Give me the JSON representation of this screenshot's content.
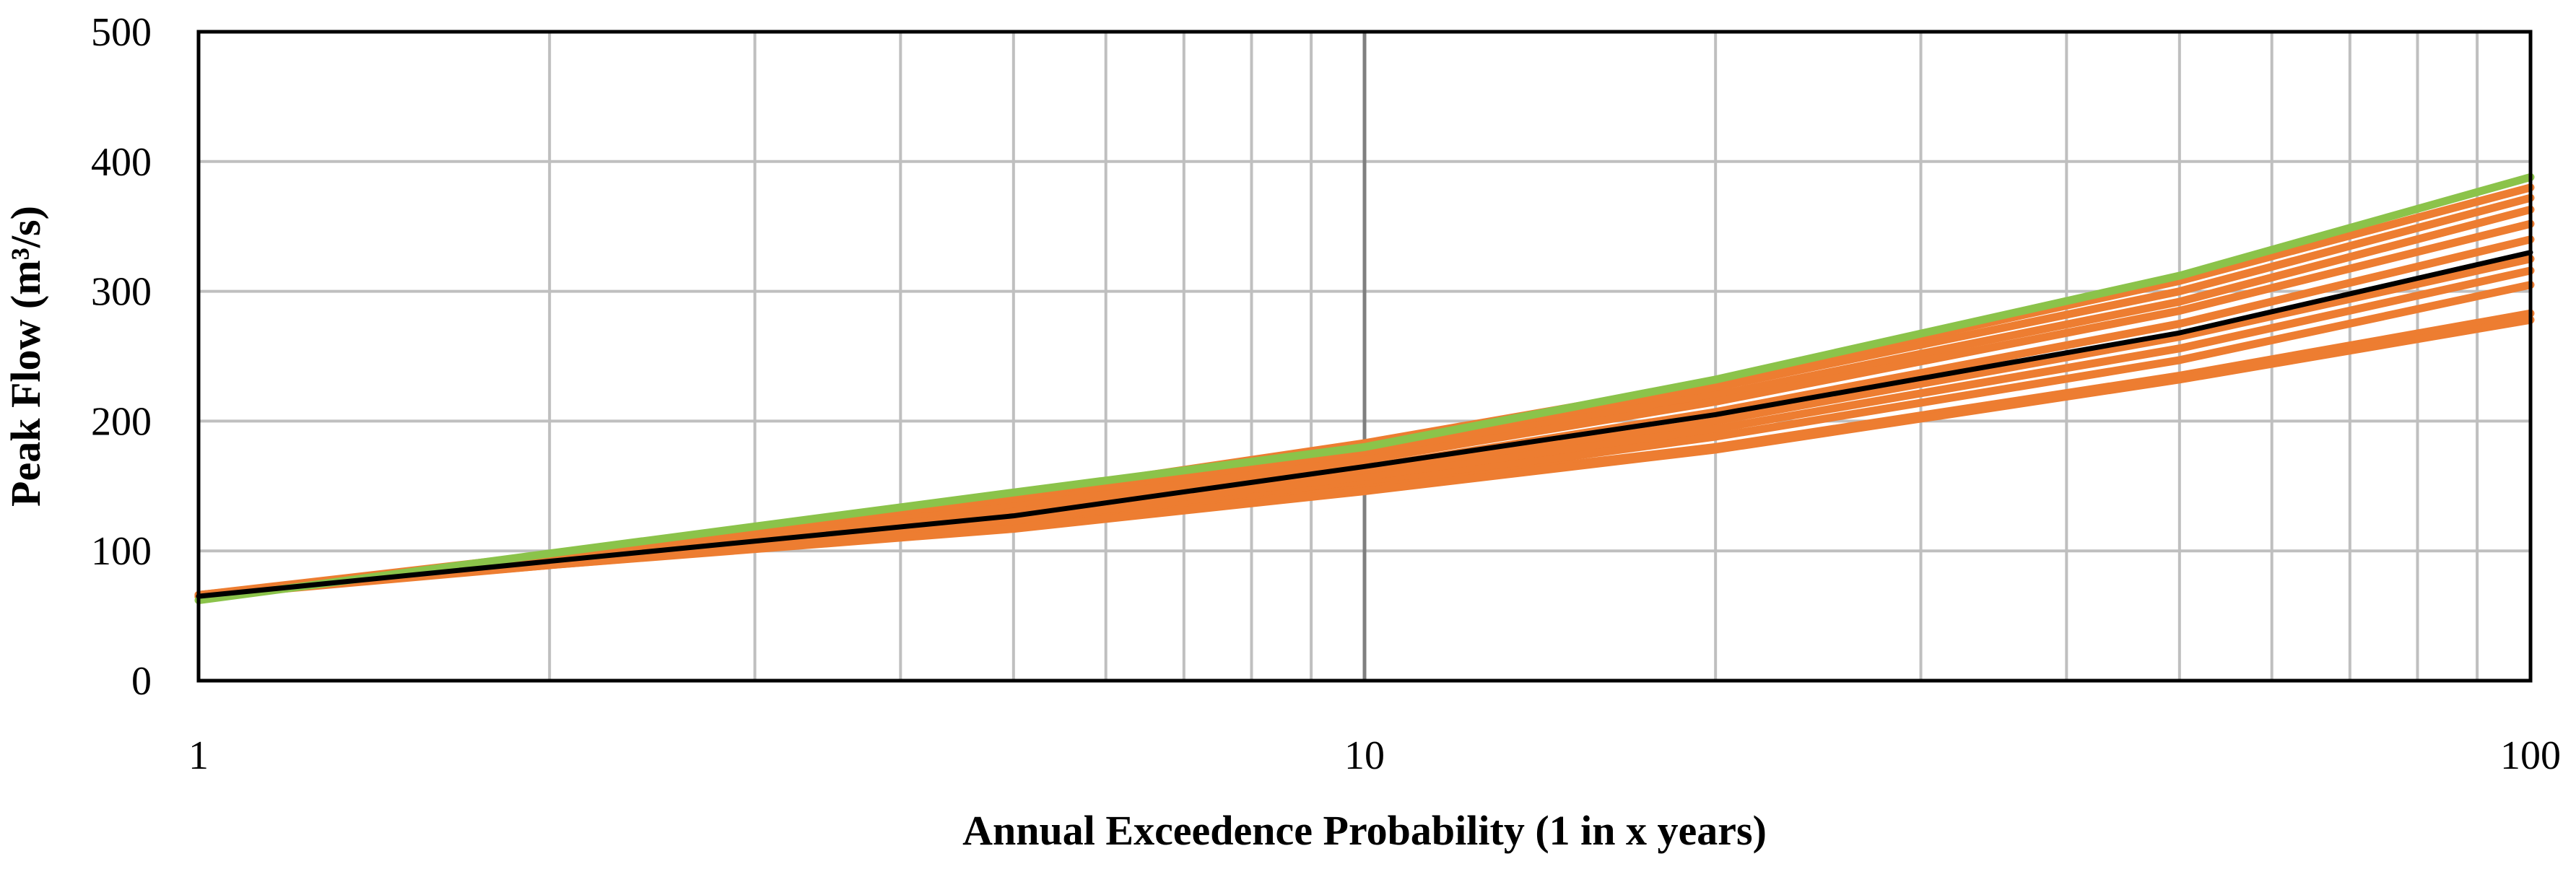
{
  "chart_data": {
    "type": "line",
    "xlabel": "Annual Exceedence Probability (1 in x years)",
    "ylabel": "Peak Flow (m³/s)",
    "x_scale": "log",
    "xlim": [
      1,
      100
    ],
    "ylim": [
      0,
      500
    ],
    "x_tick_labels": [
      "1",
      "10",
      "100"
    ],
    "y_tick_labels": [
      "0",
      "100",
      "200",
      "300",
      "400",
      "500"
    ],
    "grid": "major and minor (log), on",
    "legend": "none",
    "x": [
      1,
      2,
      5,
      10,
      20,
      50,
      100
    ],
    "series": [
      {
        "color": "#000000",
        "values": [
          65,
          92,
          127,
          165,
          205,
          268,
          330
        ]
      },
      {
        "color": "#8BC34A",
        "values": [
          62,
          98,
          145,
          180,
          232,
          312,
          388
        ]
      },
      {
        "color": "#ED7D31",
        "values": [
          66,
          97,
          143,
          183,
          230,
          308,
          380
        ]
      },
      {
        "color": "#ED7D31",
        "values": [
          65,
          96,
          140,
          179,
          226,
          300,
          372
        ]
      },
      {
        "color": "#ED7D31",
        "values": [
          66,
          95,
          137,
          174,
          220,
          292,
          363
        ]
      },
      {
        "color": "#ED7D31",
        "values": [
          65,
          94,
          134,
          170,
          215,
          285,
          352
        ]
      },
      {
        "color": "#ED7D31",
        "values": [
          66,
          93,
          130,
          164,
          207,
          275,
          340
        ]
      },
      {
        "color": "#ED7D31",
        "values": [
          65,
          92,
          127,
          160,
          200,
          265,
          325
        ]
      },
      {
        "color": "#ED7D31",
        "values": [
          66,
          91,
          124,
          156,
          194,
          256,
          316
        ]
      },
      {
        "color": "#ED7D31",
        "values": [
          65,
          90,
          121,
          151,
          188,
          247,
          305
        ]
      },
      {
        "color": "#ED7D31",
        "values": [
          66,
          89,
          118,
          148,
          180,
          235,
          283
        ]
      },
      {
        "color": "#ED7D31",
        "values": [
          65,
          89,
          117,
          146,
          178,
          232,
          278
        ]
      }
    ]
  }
}
